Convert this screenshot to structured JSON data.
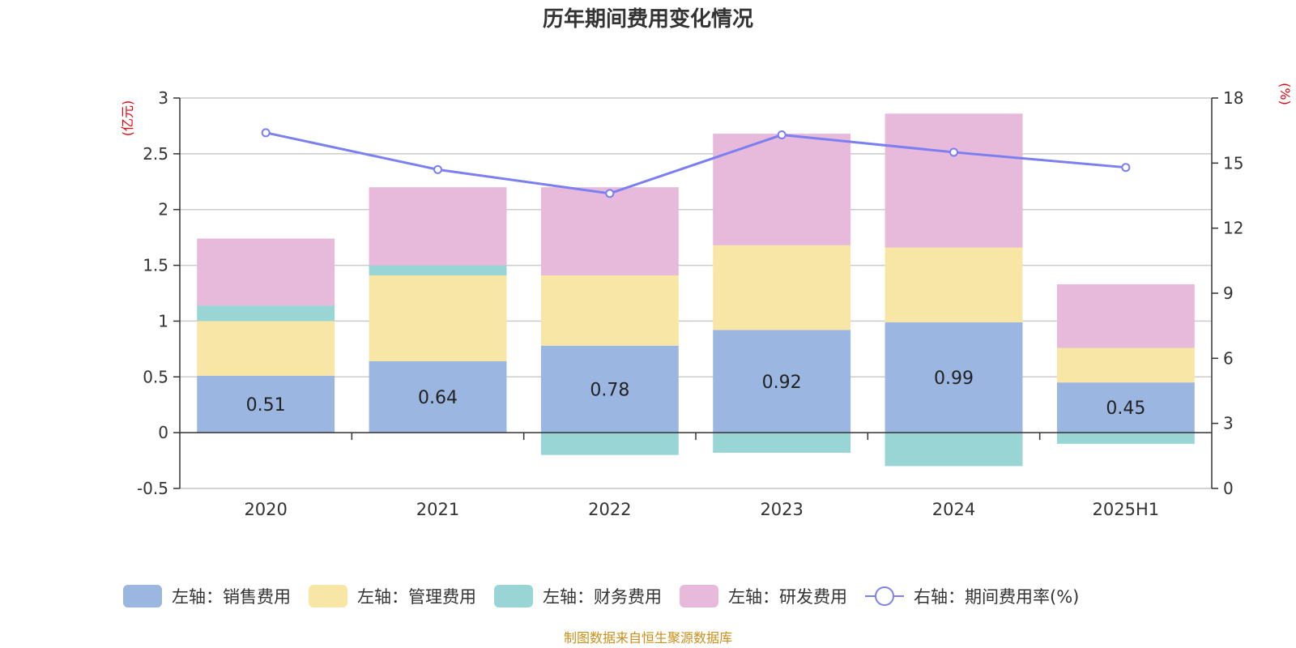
{
  "chart_data": {
    "type": "bar",
    "title": "历年期间费用变化情况",
    "categories": [
      "2020",
      "2021",
      "2022",
      "2023",
      "2024",
      "2025H1"
    ],
    "left_axis": {
      "unit_label": "(亿元)",
      "ylim": [
        -0.5,
        3
      ],
      "ticks": [
        "3",
        "2.5",
        "2",
        "1.5",
        "1",
        "0.5",
        "0",
        "-0.5"
      ],
      "tick_values": [
        3,
        2.5,
        2,
        1.5,
        1,
        0.5,
        0,
        -0.5
      ]
    },
    "right_axis": {
      "unit_label": "(%)",
      "ylim": [
        0,
        18
      ],
      "ticks": [
        "18",
        "15",
        "12",
        "9",
        "6",
        "3",
        "0"
      ],
      "tick_values": [
        18,
        15,
        12,
        9,
        6,
        3,
        0
      ]
    },
    "series": [
      {
        "name": "左轴：销售费用",
        "kind": "bar",
        "axis": "left",
        "color": "#9bb6e0",
        "values": [
          0.51,
          0.64,
          0.78,
          0.92,
          0.99,
          0.45
        ],
        "data_labels": [
          "0.51",
          "0.64",
          "0.78",
          "0.92",
          "0.99",
          "0.45"
        ]
      },
      {
        "name": "左轴：管理费用",
        "kind": "bar",
        "axis": "left",
        "color": "#f8e6a6",
        "values": [
          0.49,
          0.77,
          0.63,
          0.76,
          0.67,
          0.31
        ]
      },
      {
        "name": "左轴：财务费用",
        "kind": "bar",
        "axis": "left",
        "color": "#98d5d4",
        "values": [
          0.14,
          0.09,
          -0.2,
          -0.18,
          -0.3,
          -0.1
        ]
      },
      {
        "name": "左轴：研发费用",
        "kind": "bar",
        "axis": "left",
        "color": "#e7b9da",
        "values": [
          0.6,
          0.7,
          0.79,
          1.0,
          1.2,
          0.57
        ]
      },
      {
        "name": "右轴：期间费用率(%)",
        "kind": "line",
        "axis": "right",
        "color": "#7b7ff0",
        "values": [
          16.4,
          14.7,
          13.6,
          16.3,
          15.5,
          14.8
        ]
      }
    ],
    "grid": true,
    "legend_position": "bottom"
  },
  "source": "制图数据来自恒生聚源数据库"
}
